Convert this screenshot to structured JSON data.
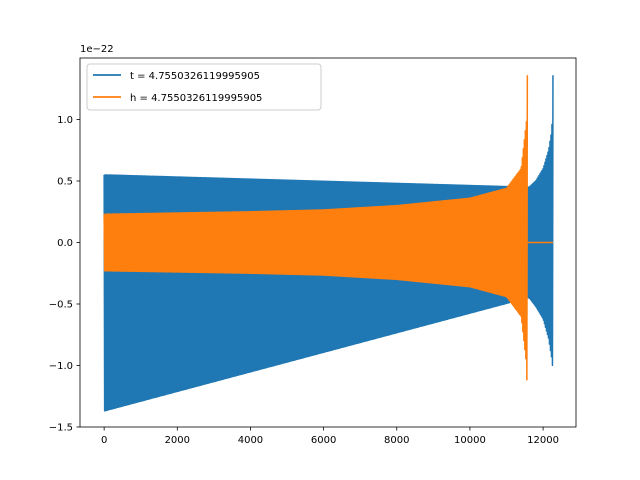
{
  "chart_data": {
    "type": "line",
    "title": "",
    "xlabel": "",
    "ylabel": "",
    "xlim": [
      -660,
      12900
    ],
    "ylim": [
      -1.5,
      1.5
    ],
    "y_multiplier_label": "1e−22",
    "xticks": [
      0,
      2000,
      4000,
      6000,
      8000,
      10000,
      12000
    ],
    "xtick_labels": [
      "0",
      "2000",
      "4000",
      "6000",
      "8000",
      "10000",
      "12000"
    ],
    "yticks": [
      -1.5,
      -1.0,
      -0.5,
      0.0,
      0.5,
      1.0
    ],
    "ytick_labels": [
      "−1.5",
      "−1.0",
      "−0.5",
      "0.0",
      "0.5",
      "1.0"
    ],
    "grid": false,
    "legend_position": "top-left",
    "series": [
      {
        "name": "t = 4.7550326119995905",
        "color": "#1f77b4",
        "envelope": {
          "x": [
            0,
            11570,
            11620,
            11800,
            12000,
            12150,
            12240,
            12270
          ],
          "upper": [
            0.55,
            0.45,
            0.45,
            0.5,
            0.6,
            0.75,
            0.92,
            1.36
          ],
          "lower": [
            -1.37,
            -0.45,
            -0.45,
            -0.52,
            -0.62,
            -0.78,
            -0.95,
            -1.04
          ]
        }
      },
      {
        "name": "h = 4.7550326119995905",
        "color": "#ff7f0e",
        "envelope": {
          "x": [
            0,
            2000,
            4000,
            6000,
            8000,
            10000,
            11000,
            11400,
            11550,
            11570
          ],
          "upper": [
            0.23,
            0.24,
            0.25,
            0.265,
            0.3,
            0.36,
            0.44,
            0.6,
            1.0,
            1.36
          ],
          "lower": [
            -0.23,
            -0.24,
            -0.25,
            -0.265,
            -0.3,
            -0.36,
            -0.44,
            -0.6,
            -1.0,
            -1.37
          ]
        },
        "flat_segment": {
          "x": [
            11570,
            12270
          ],
          "value": 0.0
        }
      }
    ]
  }
}
